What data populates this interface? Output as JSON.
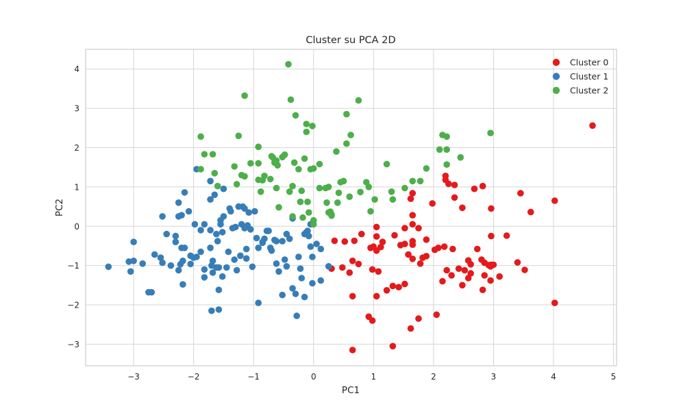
{
  "chart_data": {
    "type": "scatter",
    "title": "Cluster su PCA 2D",
    "xlabel": "PC1",
    "ylabel": "PC2",
    "xlim": [
      -3.8,
      5.05
    ],
    "ylim": [
      -3.55,
      4.5
    ],
    "xticks": [
      -3,
      -2,
      -1,
      0,
      1,
      2,
      3,
      4,
      5
    ],
    "yticks": [
      -3,
      -2,
      -1,
      0,
      1,
      2,
      3,
      4
    ],
    "xtick_labels": [
      "−3",
      "−2",
      "−1",
      "0",
      "1",
      "2",
      "3",
      "4",
      "5"
    ],
    "ytick_labels": [
      "−3",
      "−2",
      "−1",
      "0",
      "1",
      "2",
      "3",
      "4"
    ],
    "grid": true,
    "legend_position": "top-right",
    "series": [
      {
        "name": "Cluster 0",
        "color": "#e41a1c",
        "points": [
          [
            4.65,
            2.56
          ],
          [
            4.02,
            0.65
          ],
          [
            3.45,
            0.84
          ],
          [
            3.62,
            0.36
          ],
          [
            3.22,
            -0.24
          ],
          [
            3.4,
            -0.92
          ],
          [
            3.52,
            -1.11
          ],
          [
            4.02,
            -1.95
          ],
          [
            2.96,
            0.45
          ],
          [
            2.82,
            1.02
          ],
          [
            2.68,
            0.95
          ],
          [
            2.96,
            -0.25
          ],
          [
            2.96,
            -0.98
          ],
          [
            3.0,
            -0.98
          ],
          [
            2.92,
            -0.99
          ],
          [
            3.1,
            -1.28
          ],
          [
            2.73,
            -0.58
          ],
          [
            2.8,
            -0.85
          ],
          [
            2.85,
            -0.93
          ],
          [
            2.95,
            -1.02
          ],
          [
            2.85,
            -1.25
          ],
          [
            2.95,
            -1.38
          ],
          [
            2.82,
            -1.62
          ],
          [
            2.58,
            -0.87
          ],
          [
            2.52,
            -1.12
          ],
          [
            2.62,
            -0.97
          ],
          [
            2.62,
            -1.2
          ],
          [
            2.58,
            -1.32
          ],
          [
            2.48,
            -1.5
          ],
          [
            2.42,
            -1.08
          ],
          [
            2.35,
            0.73
          ],
          [
            2.25,
            1.08
          ],
          [
            2.35,
            1.05
          ],
          [
            2.2,
            1.28
          ],
          [
            2.2,
            1.18
          ],
          [
            2.48,
            0.47
          ],
          [
            2.18,
            -0.52
          ],
          [
            2.32,
            -0.58
          ],
          [
            2.08,
            -0.55
          ],
          [
            2.22,
            -1.12
          ],
          [
            2.3,
            -1.25
          ],
          [
            2.15,
            -1.4
          ],
          [
            2.02,
            -0.6
          ],
          [
            2.05,
            -2.25
          ],
          [
            1.98,
            0.58
          ],
          [
            1.88,
            -0.34
          ],
          [
            1.82,
            -0.8
          ],
          [
            1.88,
            -0.76
          ],
          [
            1.78,
            -0.95
          ],
          [
            1.75,
            -0.05
          ],
          [
            1.65,
            -0.38
          ],
          [
            1.65,
            0.05
          ],
          [
            1.65,
            0.28
          ],
          [
            1.62,
            0.7
          ],
          [
            1.65,
            0.84
          ],
          [
            1.58,
            -0.72
          ],
          [
            1.65,
            -0.83
          ],
          [
            1.65,
            -0.47
          ],
          [
            1.62,
            -2.6
          ],
          [
            1.75,
            -2.35
          ],
          [
            1.52,
            -0.05
          ],
          [
            1.52,
            -0.45
          ],
          [
            1.52,
            -1.47
          ],
          [
            1.45,
            -0.48
          ],
          [
            1.35,
            -0.23
          ],
          [
            1.32,
            -1.52
          ],
          [
            1.32,
            -3.05
          ],
          [
            1.42,
            -1.55
          ],
          [
            1.22,
            -1.63
          ],
          [
            1.15,
            -0.4
          ],
          [
            1.12,
            -0.53
          ],
          [
            1.0,
            -0.52
          ],
          [
            1.05,
            -0.62
          ],
          [
            1.08,
            -1.15
          ],
          [
            1.05,
            -0.26
          ],
          [
            1.05,
            -0.02
          ],
          [
            0.95,
            -0.55
          ],
          [
            0.98,
            -1.1
          ],
          [
            0.92,
            -2.3
          ],
          [
            0.98,
            -2.4
          ],
          [
            0.8,
            -0.2
          ],
          [
            0.75,
            -0.96
          ],
          [
            0.68,
            -0.37
          ],
          [
            0.65,
            -0.88
          ],
          [
            0.6,
            -1.18
          ],
          [
            0.65,
            -1.78
          ],
          [
            0.65,
            -3.15
          ],
          [
            0.52,
            -0.39
          ],
          [
            0.48,
            -1.05
          ],
          [
            0.35,
            -0.37
          ],
          [
            0.3,
            -1.08
          ],
          [
            1.05,
            -1.78
          ]
        ]
      },
      {
        "name": "Cluster 1",
        "color": "#377eb8",
        "points": [
          [
            -3.42,
            -1.03
          ],
          [
            -3.05,
            -1.15
          ],
          [
            -3.08,
            -0.9
          ],
          [
            -3.0,
            -0.88
          ],
          [
            -3.0,
            -0.4
          ],
          [
            -2.85,
            -0.95
          ],
          [
            -2.75,
            -1.68
          ],
          [
            -2.7,
            -1.68
          ],
          [
            -2.65,
            -0.72
          ],
          [
            -2.55,
            -0.8
          ],
          [
            -2.52,
            -0.93
          ],
          [
            -2.52,
            0.25
          ],
          [
            -2.45,
            -0.2
          ],
          [
            -2.38,
            -1.0
          ],
          [
            -2.3,
            -0.25
          ],
          [
            -2.3,
            -0.4
          ],
          [
            -2.25,
            -1.12
          ],
          [
            -2.25,
            0.25
          ],
          [
            -2.25,
            0.6
          ],
          [
            -2.22,
            -0.97
          ],
          [
            -2.2,
            0.28
          ],
          [
            -2.2,
            -0.55
          ],
          [
            -2.18,
            -0.88
          ],
          [
            -2.18,
            -1.48
          ],
          [
            -2.15,
            -0.55
          ],
          [
            -2.15,
            0.86
          ],
          [
            -2.05,
            -0.75
          ],
          [
            -2.08,
            0.38
          ],
          [
            -2.05,
            -0.96
          ],
          [
            -2.0,
            -0.8
          ],
          [
            -1.95,
            -0.78
          ],
          [
            -1.95,
            1.45
          ],
          [
            -1.88,
            -0.65
          ],
          [
            -1.88,
            -0.1
          ],
          [
            -1.82,
            -1.1
          ],
          [
            -1.82,
            -1.3
          ],
          [
            -1.82,
            0.05
          ],
          [
            -1.72,
            0.68
          ],
          [
            -1.72,
            1.15
          ],
          [
            -1.72,
            -0.1
          ],
          [
            -1.72,
            -0.55
          ],
          [
            -1.7,
            -2.15
          ],
          [
            -1.68,
            -0.88
          ],
          [
            -1.68,
            -1.18
          ],
          [
            -1.65,
            0.8
          ],
          [
            -1.62,
            -1.05
          ],
          [
            -1.6,
            -0.38
          ],
          [
            -1.58,
            -1.05
          ],
          [
            -1.58,
            -1.62
          ],
          [
            -1.58,
            -2.12
          ],
          [
            -1.55,
            0.15
          ],
          [
            -1.55,
            0.05
          ],
          [
            -1.52,
            -0.15
          ],
          [
            -1.52,
            -1.28
          ],
          [
            -1.5,
            0.25
          ],
          [
            -1.5,
            0.95
          ],
          [
            -1.45,
            -1.05
          ],
          [
            -1.4,
            0.45
          ],
          [
            -1.38,
            0.38
          ],
          [
            -1.35,
            -0.05
          ],
          [
            -1.32,
            -0.85
          ],
          [
            -1.3,
            -0.02
          ],
          [
            -1.28,
            -1.12
          ],
          [
            -1.25,
            0.5
          ],
          [
            -1.22,
            -0.75
          ],
          [
            -1.2,
            0.05
          ],
          [
            -1.18,
            0.5
          ],
          [
            -1.15,
            -0.05
          ],
          [
            -1.15,
            0.45
          ],
          [
            -1.12,
            -0.58
          ],
          [
            -1.12,
            -0.82
          ],
          [
            -1.1,
            0.02
          ],
          [
            -1.05,
            -0.08
          ],
          [
            -1.02,
            -1.03
          ],
          [
            -0.98,
            0.38
          ],
          [
            -0.95,
            -0.3
          ],
          [
            -0.92,
            -0.55
          ],
          [
            -0.92,
            -1.95
          ],
          [
            -0.85,
            -0.4
          ],
          [
            -0.85,
            -0.42
          ],
          [
            -0.82,
            -0.32
          ],
          [
            -0.78,
            -0.12
          ],
          [
            -0.75,
            -0.12
          ],
          [
            -0.72,
            -0.55
          ],
          [
            -0.7,
            -0.62
          ],
          [
            -0.65,
            -0.35
          ],
          [
            -0.62,
            -0.38
          ],
          [
            -0.58,
            -1.15
          ],
          [
            -0.52,
            -0.38
          ],
          [
            -0.52,
            -1.75
          ],
          [
            -0.48,
            -0.85
          ],
          [
            -0.45,
            -1.02
          ],
          [
            -0.45,
            -0.2
          ],
          [
            -0.4,
            -0.32
          ],
          [
            -0.35,
            -1.58
          ],
          [
            -0.3,
            -1.72
          ],
          [
            -0.28,
            -2.28
          ],
          [
            -0.25,
            -0.78
          ],
          [
            -0.22,
            -1.08
          ],
          [
            -0.2,
            -1.32
          ],
          [
            -0.15,
            -0.2
          ],
          [
            -0.12,
            -0.15
          ],
          [
            -0.1,
            -0.12
          ],
          [
            -0.08,
            -0.25
          ],
          [
            -0.05,
            -0.52
          ],
          [
            -0.02,
            -0.78
          ],
          [
            -0.02,
            -1.45
          ],
          [
            0.05,
            -0.45
          ],
          [
            0.12,
            -1.38
          ],
          [
            0.25,
            -1.02
          ],
          [
            0.12,
            -0.58
          ],
          [
            -0.15,
            -1.8
          ],
          [
            -1.62,
            -0.2
          ],
          [
            -1.42,
            -0.65
          ],
          [
            -1.7,
            -1.0
          ],
          [
            -1.98,
            0.05
          ],
          [
            -1.08,
            0.35
          ],
          [
            -0.62,
            -0.95
          ],
          [
            -0.35,
            0.2
          ],
          [
            -0.05,
            0.05
          ]
        ]
      },
      {
        "name": "Cluster 2",
        "color": "#4daf4a",
        "points": [
          [
            -1.88,
            2.28
          ],
          [
            -1.88,
            1.45
          ],
          [
            -1.82,
            1.83
          ],
          [
            -1.68,
            1.83
          ],
          [
            -1.65,
            1.35
          ],
          [
            -1.6,
            1.02
          ],
          [
            -1.32,
            1.52
          ],
          [
            -1.28,
            1.07
          ],
          [
            -1.25,
            2.3
          ],
          [
            -1.2,
            1.3
          ],
          [
            -1.15,
            1.27
          ],
          [
            -1.15,
            3.32
          ],
          [
            -1.05,
            1.6
          ],
          [
            -0.92,
            2.02
          ],
          [
            -0.92,
            1.6
          ],
          [
            -0.92,
            1.18
          ],
          [
            -0.88,
            0.88
          ],
          [
            -0.85,
            1.17
          ],
          [
            -0.82,
            1.28
          ],
          [
            -0.72,
            1.2
          ],
          [
            -0.7,
            1.78
          ],
          [
            -0.68,
            1.75
          ],
          [
            -0.65,
            1.62
          ],
          [
            -0.62,
            1.67
          ],
          [
            -0.62,
            0.97
          ],
          [
            -0.6,
            1.55
          ],
          [
            -0.58,
            0.48
          ],
          [
            -0.52,
            1.76
          ],
          [
            -0.48,
            1.82
          ],
          [
            -0.4,
            0.88
          ],
          [
            -0.35,
            0.25
          ],
          [
            -0.35,
            1.02
          ],
          [
            -0.32,
            1.62
          ],
          [
            -0.3,
            2.82
          ],
          [
            -0.25,
            1.45
          ],
          [
            -0.22,
            0.62
          ],
          [
            -0.2,
            0.9
          ],
          [
            -0.18,
            0.22
          ],
          [
            -0.15,
            1.72
          ],
          [
            -0.12,
            2.4
          ],
          [
            -0.12,
            2.6
          ],
          [
            -0.08,
            0.35
          ],
          [
            -0.05,
            1.45
          ],
          [
            -0.02,
            2.55
          ],
          [
            0.0,
            0.15
          ],
          [
            0.0,
            0.05
          ],
          [
            0.1,
            1.58
          ],
          [
            0.2,
            0.97
          ],
          [
            0.22,
            0.6
          ],
          [
            0.25,
            1.0
          ],
          [
            0.25,
            0.35
          ],
          [
            0.28,
            0.37
          ],
          [
            0.3,
            0.3
          ],
          [
            0.3,
            0.27
          ],
          [
            0.38,
            1.9
          ],
          [
            0.42,
            0.85
          ],
          [
            0.45,
            1.12
          ],
          [
            0.5,
            1.15
          ],
          [
            0.55,
            2.1
          ],
          [
            0.6,
            0.75
          ],
          [
            0.62,
            2.32
          ],
          [
            0.75,
            3.2
          ],
          [
            0.78,
            0.87
          ],
          [
            0.88,
            1.12
          ],
          [
            0.92,
            1.0
          ],
          [
            0.95,
            0.38
          ],
          [
            1.02,
            0.68
          ],
          [
            1.22,
            1.58
          ],
          [
            1.32,
            0.68
          ],
          [
            1.3,
            0.88
          ],
          [
            1.52,
            0.97
          ],
          [
            1.65,
            1.15
          ],
          [
            1.78,
            1.15
          ],
          [
            1.88,
            1.47
          ],
          [
            2.1,
            1.95
          ],
          [
            2.15,
            2.32
          ],
          [
            2.22,
            2.28
          ],
          [
            2.22,
            1.95
          ],
          [
            2.22,
            1.57
          ],
          [
            2.45,
            1.75
          ],
          [
            2.95,
            2.37
          ],
          [
            -0.42,
            4.12
          ],
          [
            -0.38,
            3.22
          ],
          [
            0.55,
            2.85
          ],
          [
            0.0,
            1.47
          ],
          [
            0.1,
            0.97
          ],
          [
            -0.1,
            0.62
          ],
          [
            0.4,
            0.6
          ]
        ]
      }
    ]
  }
}
